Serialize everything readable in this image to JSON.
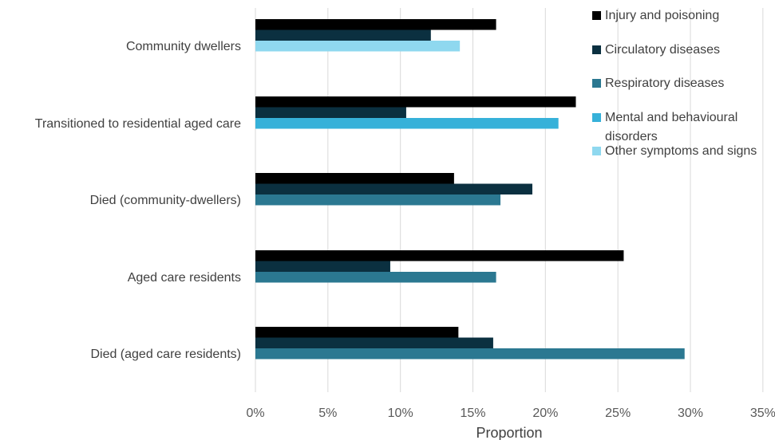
{
  "chart_data": {
    "type": "bar",
    "orientation": "horizontal",
    "categories": [
      "Community dwellers",
      "Transitioned to residential aged care",
      "Died (community-dwellers)",
      "Aged care residents",
      "Died (aged care residents)"
    ],
    "series": [
      {
        "name": "Injury and poisoning",
        "color": "#000000",
        "values": [
          16.6,
          22.1,
          13.7,
          25.4,
          14.0
        ]
      },
      {
        "name": "Circulatory diseases",
        "color": "#0b3040",
        "values": [
          12.1,
          10.4,
          19.1,
          9.3,
          16.4
        ]
      },
      {
        "name": "Respiratory diseases",
        "color": "#2b7891",
        "values": [
          null,
          null,
          16.9,
          16.6,
          29.6
        ]
      },
      {
        "name": "Mental and behavioural disorders",
        "color": "#36b1d9",
        "values": [
          null,
          20.9,
          null,
          null,
          null
        ]
      },
      {
        "name": "Other symptoms and signs",
        "color": "#8fd8ef",
        "values": [
          14.1,
          null,
          null,
          null,
          null
        ]
      }
    ],
    "xlabel": "Proportion",
    "ylabel": "",
    "xlim": [
      0,
      35
    ],
    "x_ticks": [
      "0%",
      "5%",
      "10%",
      "15%",
      "20%",
      "25%",
      "30%",
      "35%"
    ],
    "grid": "vertical",
    "legend_position": "top-right"
  }
}
